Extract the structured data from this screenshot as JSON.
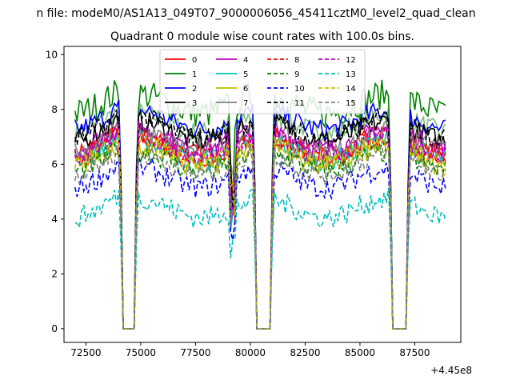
{
  "chart_data": {
    "type": "line",
    "suptitle": "n file: modeM0/AS1A13_049T07_9000006056_45411cztM0_level2_quad_clean",
    "title": "Quadrant 0 module wise count rates with 100.0s bins.",
    "xlabel": "",
    "ylabel": "",
    "x_offset_label": "+4.45e8",
    "xlim": [
      71500,
      89600
    ],
    "ylim": [
      -0.5,
      10.3
    ],
    "xticks": [
      72500,
      75000,
      77500,
      80000,
      82500,
      85000,
      87500
    ],
    "yticks": [
      0,
      2,
      4,
      6,
      8,
      10
    ],
    "grid": false,
    "legend": {
      "position": "top-center",
      "columns": 4
    },
    "x_start": 72000,
    "x_end": 88900,
    "gaps": [
      [
        74200,
        74700
      ],
      [
        80300,
        80900
      ],
      [
        86500,
        87100
      ]
    ],
    "dip": {
      "x": 79200,
      "depth": 0.25
    },
    "series": [
      {
        "name": "0",
        "color": "#ff0000",
        "dash": "solid",
        "mean": 6.7
      },
      {
        "name": "1",
        "color": "#008000",
        "dash": "solid",
        "mean": 8.2
      },
      {
        "name": "2",
        "color": "#0000ff",
        "dash": "solid",
        "mean": 7.6
      },
      {
        "name": "3",
        "color": "#000000",
        "dash": "solid",
        "mean": 7.2
      },
      {
        "name": "4",
        "color": "#bf00bf",
        "dash": "solid",
        "mean": 6.9
      },
      {
        "name": "5",
        "color": "#00bfbf",
        "dash": "solid",
        "mean": 6.5
      },
      {
        "name": "6",
        "color": "#bfbf00",
        "dash": "solid",
        "mean": 6.3
      },
      {
        "name": "7",
        "color": "#808080",
        "dash": "solid",
        "mean": 6.8
      },
      {
        "name": "8",
        "color": "#ff0000",
        "dash": "dashed",
        "mean": 6.6
      },
      {
        "name": "9",
        "color": "#008000",
        "dash": "dashed",
        "mean": 6.1
      },
      {
        "name": "10",
        "color": "#0000ff",
        "dash": "dashed",
        "mean": 5.5
      },
      {
        "name": "11",
        "color": "#000000",
        "dash": "dashed",
        "mean": 7.3
      },
      {
        "name": "12",
        "color": "#bf00bf",
        "dash": "dashed",
        "mean": 6.7
      },
      {
        "name": "13",
        "color": "#00bfbf",
        "dash": "dashed",
        "mean": 4.4
      },
      {
        "name": "14",
        "color": "#bfbf00",
        "dash": "dashed",
        "mean": 6.4
      },
      {
        "name": "15",
        "color": "#808080",
        "dash": "dashed",
        "mean": 6.0
      }
    ],
    "extra_series": {
      "color": "#7fbf7f",
      "dash": "solid",
      "mean": 7.5
    }
  }
}
